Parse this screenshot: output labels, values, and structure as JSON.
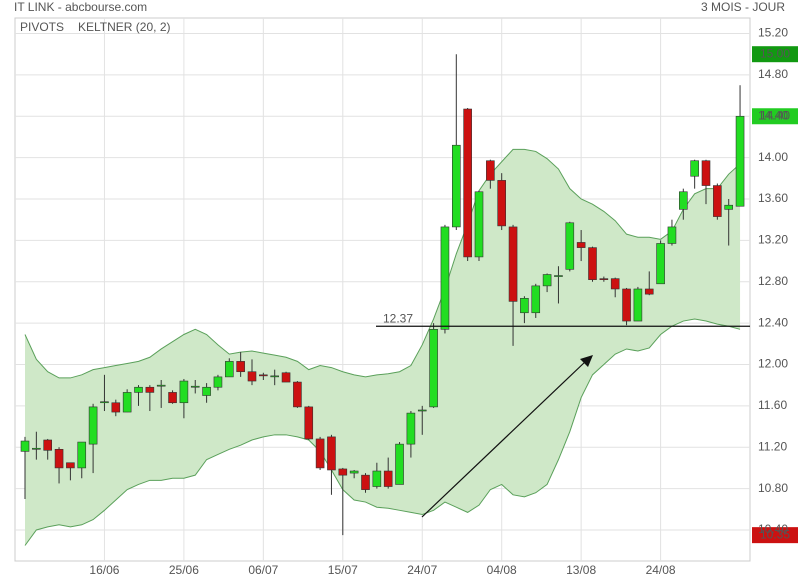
{
  "chart_data": {
    "type": "candlestick",
    "title": "IT LINK - abcbourse.com",
    "period": "3 MOIS - JOUR",
    "indicators": [
      {
        "name": "PIVOTS",
        "color": "#444444"
      },
      {
        "name": "KELTNER (20, 2)",
        "color": "#4a9a4a"
      }
    ],
    "categories": [
      null,
      null,
      null,
      null,
      null,
      null,
      null,
      "16/06",
      null,
      null,
      null,
      null,
      null,
      null,
      "25/06",
      null,
      null,
      null,
      null,
      null,
      null,
      "06/07",
      null,
      null,
      null,
      null,
      null,
      null,
      "15/07",
      null,
      null,
      null,
      null,
      null,
      null,
      "24/07",
      null,
      null,
      null,
      null,
      null,
      null,
      "04/08",
      null,
      null,
      null,
      null,
      null,
      null,
      "13/08",
      null,
      null,
      null,
      null,
      null,
      null,
      "24/08",
      null,
      null,
      null,
      null,
      null,
      null,
      null
    ],
    "open": [
      11.16,
      11.18,
      11.27,
      11.18,
      11.05,
      11.0,
      11.23,
      11.63,
      11.63,
      11.54,
      11.73,
      11.78,
      11.79,
      11.73,
      11.63,
      11.78,
      11.7,
      11.78,
      11.88,
      12.03,
      11.93,
      11.9,
      11.89,
      11.92,
      11.83,
      11.59,
      11.28,
      11.3,
      10.99,
      10.95,
      10.93,
      10.82,
      10.97,
      10.84,
      11.23,
      11.55,
      11.59,
      12.34,
      13.33,
      14.47,
      13.04,
      13.97,
      13.78,
      13.33,
      12.5,
      12.5,
      12.76,
      12.85,
      12.92,
      13.18,
      13.13,
      12.83,
      12.83,
      12.73,
      12.42,
      12.73,
      12.78,
      13.17,
      13.5,
      13.82,
      13.97,
      13.73,
      13.5,
      13.53
    ],
    "high": [
      11.3,
      11.35,
      11.28,
      11.2,
      11.05,
      11.25,
      11.62,
      11.9,
      11.66,
      11.76,
      11.8,
      11.8,
      11.85,
      11.75,
      11.86,
      11.85,
      11.82,
      11.9,
      12.06,
      12.12,
      12.05,
      11.92,
      11.95,
      11.93,
      11.84,
      11.6,
      11.3,
      11.32,
      11.0,
      10.98,
      10.95,
      11.05,
      11.1,
      11.25,
      11.55,
      11.6,
      12.4,
      13.35,
      15.0,
      14.48,
      13.68,
      13.98,
      13.85,
      13.35,
      12.66,
      12.78,
      12.88,
      12.95,
      13.38,
      13.3,
      13.14,
      12.85,
      12.84,
      12.74,
      12.75,
      12.9,
      13.2,
      13.4,
      13.7,
      13.98,
      13.98,
      13.75,
      13.6,
      14.7
    ],
    "low": [
      10.7,
      11.08,
      11.08,
      10.85,
      10.88,
      10.9,
      10.95,
      11.55,
      11.5,
      11.54,
      11.6,
      11.55,
      11.58,
      11.62,
      11.48,
      11.72,
      11.63,
      11.75,
      11.88,
      11.88,
      11.8,
      11.85,
      11.8,
      11.83,
      11.58,
      11.27,
      10.98,
      10.74,
      10.35,
      10.9,
      10.76,
      10.8,
      10.8,
      10.84,
      11.1,
      11.32,
      11.58,
      12.3,
      13.3,
      13.0,
      13.0,
      13.7,
      13.3,
      12.18,
      12.4,
      12.45,
      12.7,
      12.59,
      12.9,
      13.0,
      12.8,
      12.8,
      12.65,
      12.38,
      12.42,
      12.67,
      12.78,
      13.15,
      13.4,
      13.7,
      13.55,
      13.4,
      13.15,
      13.53
    ],
    "close": [
      11.26,
      11.19,
      11.17,
      11.0,
      11.0,
      11.25,
      11.59,
      11.64,
      11.54,
      11.73,
      11.78,
      11.73,
      11.8,
      11.63,
      11.84,
      11.79,
      11.78,
      11.88,
      12.03,
      11.93,
      11.84,
      11.89,
      11.89,
      11.83,
      11.59,
      11.28,
      11.0,
      10.98,
      10.93,
      10.97,
      10.79,
      10.97,
      10.82,
      11.23,
      11.53,
      11.56,
      12.34,
      13.33,
      14.12,
      13.04,
      13.67,
      13.78,
      13.34,
      12.61,
      12.64,
      12.76,
      12.87,
      12.86,
      13.37,
      13.13,
      12.82,
      12.82,
      12.73,
      12.42,
      12.73,
      12.68,
      13.17,
      13.33,
      13.67,
      13.97,
      13.73,
      13.43,
      13.54,
      14.4
    ],
    "up_color": "#22dd22",
    "down_color": "#cc1111",
    "keltner": {
      "color": "#5aa05a",
      "fill": "#cfe8c8",
      "upper": [
        12.29,
        12.05,
        11.93,
        11.87,
        11.87,
        11.9,
        11.95,
        11.97,
        11.99,
        12.01,
        12.03,
        12.07,
        12.15,
        12.22,
        12.29,
        12.34,
        12.29,
        12.19,
        12.1,
        12.12,
        12.13,
        12.11,
        12.09,
        12.07,
        12.03,
        11.95,
        11.99,
        11.97,
        11.93,
        11.9,
        11.88,
        11.9,
        11.91,
        11.93,
        11.99,
        12.19,
        12.44,
        12.73,
        13.07,
        13.36,
        13.68,
        13.84,
        13.96,
        14.08,
        14.08,
        14.06,
        13.99,
        13.89,
        13.7,
        13.6,
        13.55,
        13.48,
        13.39,
        13.26,
        13.23,
        13.23,
        13.21,
        13.29,
        13.5,
        13.65,
        13.7,
        13.7,
        13.84,
        13.94
      ],
      "lower": [
        10.25,
        10.4,
        10.43,
        10.45,
        10.43,
        10.45,
        10.5,
        10.59,
        10.69,
        10.79,
        10.84,
        10.88,
        10.88,
        10.9,
        10.9,
        10.93,
        11.08,
        11.13,
        11.18,
        11.22,
        11.27,
        11.3,
        11.32,
        11.32,
        11.3,
        11.27,
        11.16,
        10.98,
        10.79,
        10.69,
        10.67,
        10.62,
        10.61,
        10.59,
        10.57,
        10.55,
        10.59,
        10.67,
        10.62,
        10.57,
        10.64,
        10.79,
        10.84,
        10.74,
        10.72,
        10.76,
        10.84,
        11.08,
        11.35,
        11.68,
        11.9,
        12.0,
        12.1,
        12.15,
        12.13,
        12.16,
        12.29,
        12.37,
        12.42,
        12.44,
        12.42,
        12.39,
        12.37,
        12.34
      ]
    },
    "hline": 12.37,
    "ylim": [
      10.1,
      15.35
    ],
    "yticks": [
      {
        "value": 15.2,
        "label": "15.20"
      },
      {
        "value": 14.8,
        "label": "14.80"
      },
      {
        "value": 14.4,
        "label": "14.40"
      },
      {
        "value": 14.0,
        "label": "14.00"
      },
      {
        "value": 13.6,
        "label": "13.60"
      },
      {
        "value": 13.2,
        "label": "13.20"
      },
      {
        "value": 12.8,
        "label": "12.80"
      },
      {
        "value": 12.4,
        "label": "12.40"
      },
      {
        "value": 12.0,
        "label": "12.00"
      },
      {
        "value": 11.6,
        "label": "11.60"
      },
      {
        "value": 11.2,
        "label": "11.20"
      },
      {
        "value": 10.8,
        "label": "10.80"
      },
      {
        "value": 10.4,
        "label": "10.40"
      }
    ],
    "badges": [
      {
        "value": 15.0,
        "label": "15.00",
        "color": "#119911"
      },
      {
        "value": 14.4,
        "label": "14.40",
        "color": "#22cc22"
      },
      {
        "value": 10.35,
        "label": "10.35",
        "color": "#cc1111"
      }
    ],
    "grid": true
  }
}
